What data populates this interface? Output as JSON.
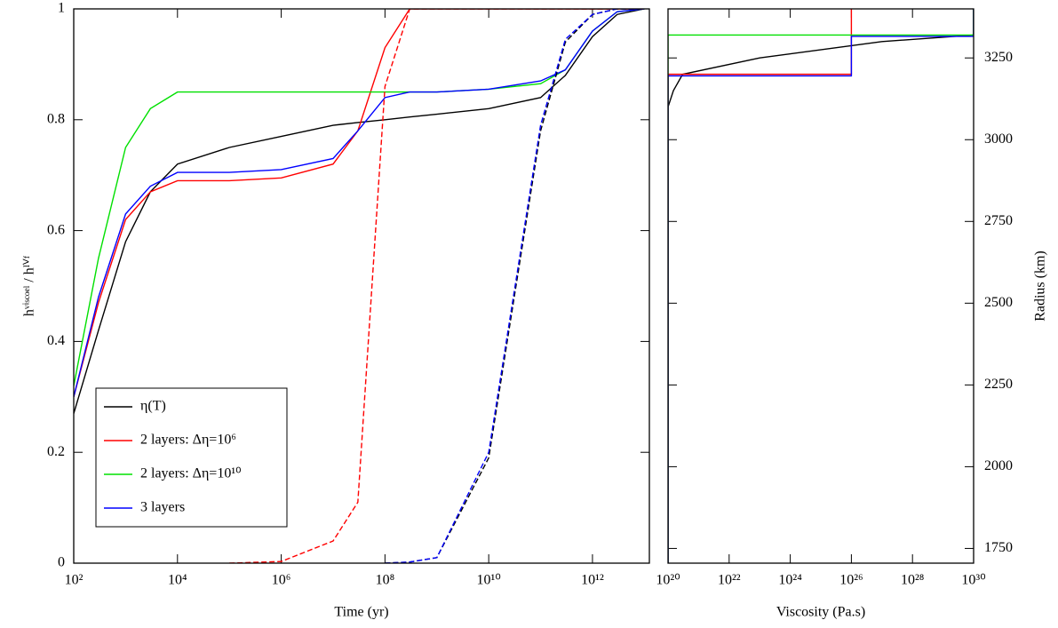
{
  "chart_data": [
    {
      "type": "line",
      "x_label": "Time (yr)",
      "y_label": "hᵛⁱˢᶜᵒᵉˡ / hᴵⱽᶠ",
      "log_x": true,
      "xlim": [
        100,
        12500000000000
      ],
      "ylim": [
        0,
        1
      ],
      "xticks": [
        {
          "value": 100,
          "label": "10²"
        },
        {
          "value": 10000,
          "label": "10⁴"
        },
        {
          "value": 1000000,
          "label": "10⁶"
        },
        {
          "value": 100000000,
          "label": "10⁸"
        },
        {
          "value": 10000000000,
          "label": "10¹⁰"
        },
        {
          "value": 1000000000000,
          "label": "10¹²"
        }
      ],
      "yticks": [
        0,
        0.2,
        0.4,
        0.6,
        0.8,
        1
      ],
      "y_axis_side": "left",
      "legend": "lower left",
      "x": [
        100,
        300,
        1000,
        3000,
        10000,
        100000,
        1000000,
        10000000,
        30000000,
        100000000,
        300000000,
        1000000000,
        10000000000,
        100000000000,
        300000000000,
        1000000000000,
        3000000000000,
        10000000000000
      ],
      "series": [
        {
          "name": "η(T)",
          "color": "#000000",
          "values": [
            0.27,
            0.42,
            0.58,
            0.67,
            0.72,
            0.75,
            0.77,
            0.79,
            0.795,
            0.8,
            0.805,
            0.81,
            0.82,
            0.84,
            0.88,
            0.95,
            0.99,
            1
          ]
        },
        {
          "name": "2 layers: Δη=10⁶",
          "color": "#ff0000",
          "values": [
            0.3,
            0.47,
            0.62,
            0.67,
            0.69,
            0.69,
            0.695,
            0.72,
            0.78,
            0.93,
            1,
            1,
            1,
            1,
            1,
            1,
            1,
            1
          ]
        },
        {
          "name": "2 layers: Δη=10¹⁰",
          "color": "#00e000",
          "values": [
            0.32,
            0.55,
            0.75,
            0.82,
            0.85,
            0.85,
            0.85,
            0.85,
            0.85,
            0.85,
            0.85,
            0.85,
            0.855,
            0.865,
            0.89,
            0.96,
            0.995,
            1
          ]
        },
        {
          "name": "3 layers",
          "color": "#0000ff",
          "values": [
            0.3,
            0.48,
            0.63,
            0.68,
            0.705,
            0.705,
            0.71,
            0.73,
            0.78,
            0.84,
            0.85,
            0.85,
            0.855,
            0.87,
            0.89,
            0.96,
            0.995,
            1
          ]
        },
        {
          "color": "#ff0000",
          "dash": true,
          "values": [
            null,
            null,
            null,
            null,
            null,
            0,
            0.003,
            0.04,
            0.11,
            0.86,
            1,
            1,
            1,
            1,
            1,
            1,
            1,
            1
          ]
        },
        {
          "color": "#000000",
          "dash": true,
          "values": [
            null,
            null,
            null,
            null,
            null,
            null,
            null,
            null,
            null,
            0,
            0.002,
            0.01,
            0.19,
            0.78,
            0.94,
            0.99,
            1,
            1
          ]
        },
        {
          "color": "#0000ff",
          "dash": true,
          "values": [
            null,
            null,
            null,
            null,
            null,
            null,
            null,
            null,
            null,
            0,
            0.002,
            0.01,
            0.2,
            0.79,
            0.945,
            0.99,
            1,
            1
          ]
        }
      ]
    },
    {
      "type": "line",
      "x_label": "Viscosity (Pa.s)",
      "y_label": "Radius (km)",
      "log_x": true,
      "xlim": [
        100000000000000000000,
        1e+30
      ],
      "ylim": [
        1705,
        3400
      ],
      "xticks": [
        {
          "value": 1e+20,
          "label": "10²⁰"
        },
        {
          "value": 1e+22,
          "label": "10²²"
        },
        {
          "value": 1e+24,
          "label": "10²⁴"
        },
        {
          "value": 1e+26,
          "label": "10²⁶"
        },
        {
          "value": 1e+28,
          "label": "10²⁸"
        },
        {
          "value": 1e+30,
          "label": "10³⁰"
        }
      ],
      "yticks": [
        1750,
        2000,
        2250,
        2500,
        2750,
        3000,
        3250
      ],
      "y_axis_side": "right",
      "series": [
        {
          "color": "#000000",
          "x": [
            1e+20,
            1e+20,
            1.5e+20,
            3e+20,
            1e+23,
            1e+27,
            1e+30,
            1e+30
          ],
          "values": [
            1705,
            3100,
            3150,
            3200,
            3250,
            3300,
            3320,
            3400
          ]
        },
        {
          "color": "#ff0000",
          "x": [
            1e+20,
            1e+20,
            1e+26,
            1e+26
          ],
          "values": [
            1705,
            3200,
            3200,
            3400
          ]
        },
        {
          "color": "#00e000",
          "x": [
            1e+20,
            1e+20,
            1e+30,
            1e+30
          ],
          "values": [
            1705,
            3320,
            3320,
            3400
          ]
        },
        {
          "color": "#0000ff",
          "x": [
            1e+20,
            1e+20,
            1e+26,
            1e+26,
            1e+30,
            1e+30
          ],
          "values": [
            1705,
            3195,
            3195,
            3316,
            3316,
            3400
          ]
        }
      ]
    }
  ]
}
